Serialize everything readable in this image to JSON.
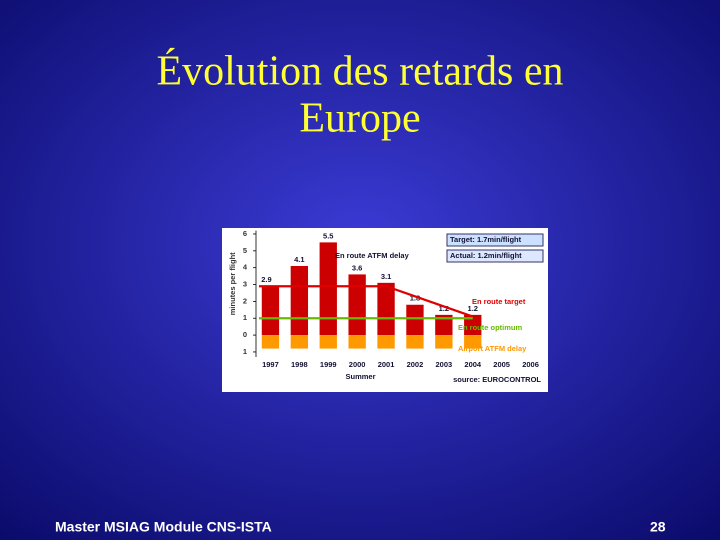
{
  "slide": {
    "title_lines": [
      "Évolution des retards en",
      "Europe"
    ],
    "footer": "Master MSIAG Module CNS-ISTA",
    "page": "28"
  },
  "chart_data": {
    "type": "bar",
    "x_label": "Summer",
    "y_label": "minutes per flight",
    "categories": [
      "1997",
      "1998",
      "1999",
      "2000",
      "2001",
      "2002",
      "2003",
      "2004",
      "2005",
      "2006"
    ],
    "series": [
      {
        "name": "En route ATFM delay",
        "color": "#cc0000",
        "kind": "bar",
        "values": [
          2.9,
          4.1,
          5.5,
          3.6,
          3.1,
          1.8,
          1.2,
          1.2,
          null,
          null
        ]
      },
      {
        "name": "Airport ATFM delay",
        "color": "#ff9900",
        "kind": "bar",
        "values": [
          -0.8,
          -0.8,
          -0.8,
          -0.8,
          -0.8,
          -0.8,
          -0.8,
          -0.8,
          null,
          null
        ]
      },
      {
        "name": "En route target",
        "color": "#e00000",
        "kind": "line",
        "values": [
          2.9,
          2.9,
          2.9,
          2.9,
          2.9,
          2.3,
          1.7,
          1.1,
          null,
          null
        ]
      },
      {
        "name": "En route optimum",
        "color": "#66bb00",
        "kind": "line",
        "values": [
          1.0,
          1.0,
          1.0,
          1.0,
          1.0,
          1.0,
          1.0,
          1.0,
          null,
          null
        ]
      }
    ],
    "ylim": [
      -1.3,
      6.2
    ],
    "yticks": [
      {
        "value": -1,
        "label": "1"
      },
      0,
      1,
      2,
      3,
      4,
      5,
      6
    ],
    "annotations": [
      "Target: 1.7min/flight",
      "Actual: 1.2min/flight",
      "source: EUROCONTROL"
    ]
  }
}
